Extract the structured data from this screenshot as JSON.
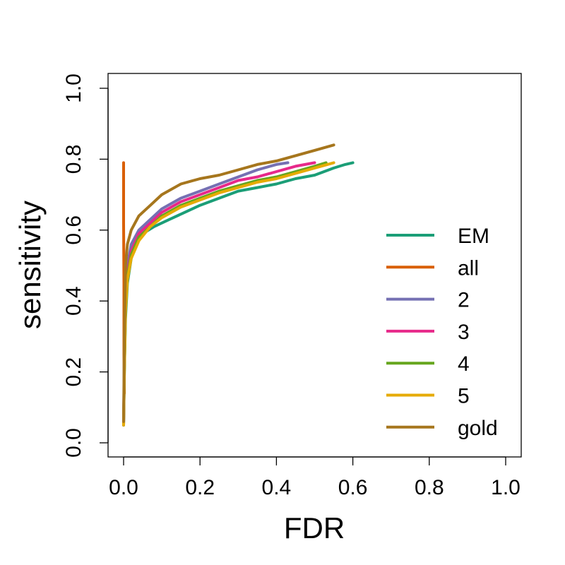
{
  "chart_data": {
    "type": "line",
    "title": "",
    "xlabel": "FDR",
    "ylabel": "sensitivity",
    "xlim": [
      0,
      1
    ],
    "ylim": [
      0,
      1
    ],
    "xticks": [
      "0.0",
      "0.2",
      "0.4",
      "0.6",
      "0.8",
      "1.0"
    ],
    "yticks": [
      "0.0",
      "0.2",
      "0.4",
      "0.6",
      "0.8",
      "1.0"
    ],
    "grid": false,
    "legend_position": "right",
    "series": [
      {
        "name": "EM",
        "color": "#1b9e77",
        "points": [
          [
            0.0,
            0.05
          ],
          [
            0.002,
            0.2
          ],
          [
            0.005,
            0.35
          ],
          [
            0.01,
            0.45
          ],
          [
            0.02,
            0.52
          ],
          [
            0.03,
            0.56
          ],
          [
            0.05,
            0.59
          ],
          [
            0.08,
            0.61
          ],
          [
            0.12,
            0.63
          ],
          [
            0.16,
            0.65
          ],
          [
            0.2,
            0.67
          ],
          [
            0.25,
            0.69
          ],
          [
            0.3,
            0.71
          ],
          [
            0.35,
            0.72
          ],
          [
            0.4,
            0.73
          ],
          [
            0.45,
            0.745
          ],
          [
            0.5,
            0.755
          ],
          [
            0.55,
            0.775
          ],
          [
            0.58,
            0.785
          ],
          [
            0.6,
            0.79
          ]
        ]
      },
      {
        "name": "all",
        "color": "#d95f02",
        "points": [
          [
            0.0,
            0.79
          ],
          [
            0.0,
            0.62
          ],
          [
            0.001,
            0.45
          ],
          [
            0.001,
            0.25
          ],
          [
            0.002,
            0.14
          ]
        ]
      },
      {
        "name": "2",
        "color": "#7570b3",
        "points": [
          [
            0.0,
            0.05
          ],
          [
            0.002,
            0.25
          ],
          [
            0.005,
            0.42
          ],
          [
            0.01,
            0.5
          ],
          [
            0.02,
            0.56
          ],
          [
            0.04,
            0.6
          ],
          [
            0.07,
            0.63
          ],
          [
            0.1,
            0.66
          ],
          [
            0.15,
            0.69
          ],
          [
            0.2,
            0.71
          ],
          [
            0.25,
            0.73
          ],
          [
            0.3,
            0.75
          ],
          [
            0.35,
            0.77
          ],
          [
            0.4,
            0.785
          ],
          [
            0.43,
            0.79
          ]
        ]
      },
      {
        "name": "3",
        "color": "#e7298a",
        "points": [
          [
            0.0,
            0.05
          ],
          [
            0.002,
            0.22
          ],
          [
            0.005,
            0.4
          ],
          [
            0.01,
            0.48
          ],
          [
            0.02,
            0.54
          ],
          [
            0.04,
            0.59
          ],
          [
            0.07,
            0.62
          ],
          [
            0.1,
            0.65
          ],
          [
            0.15,
            0.68
          ],
          [
            0.2,
            0.7
          ],
          [
            0.25,
            0.72
          ],
          [
            0.3,
            0.74
          ],
          [
            0.35,
            0.75
          ],
          [
            0.4,
            0.765
          ],
          [
            0.45,
            0.78
          ],
          [
            0.5,
            0.79
          ]
        ]
      },
      {
        "name": "4",
        "color": "#66a61e",
        "points": [
          [
            0.0,
            0.05
          ],
          [
            0.002,
            0.2
          ],
          [
            0.005,
            0.38
          ],
          [
            0.01,
            0.47
          ],
          [
            0.02,
            0.53
          ],
          [
            0.04,
            0.58
          ],
          [
            0.07,
            0.61
          ],
          [
            0.1,
            0.64
          ],
          [
            0.15,
            0.67
          ],
          [
            0.2,
            0.69
          ],
          [
            0.25,
            0.71
          ],
          [
            0.3,
            0.725
          ],
          [
            0.35,
            0.74
          ],
          [
            0.4,
            0.75
          ],
          [
            0.45,
            0.765
          ],
          [
            0.5,
            0.78
          ],
          [
            0.53,
            0.79
          ]
        ]
      },
      {
        "name": "5",
        "color": "#e6ab02",
        "points": [
          [
            0.0,
            0.05
          ],
          [
            0.002,
            0.2
          ],
          [
            0.005,
            0.37
          ],
          [
            0.01,
            0.46
          ],
          [
            0.02,
            0.52
          ],
          [
            0.04,
            0.57
          ],
          [
            0.07,
            0.61
          ],
          [
            0.1,
            0.635
          ],
          [
            0.15,
            0.665
          ],
          [
            0.2,
            0.685
          ],
          [
            0.25,
            0.705
          ],
          [
            0.3,
            0.72
          ],
          [
            0.35,
            0.735
          ],
          [
            0.4,
            0.745
          ],
          [
            0.45,
            0.76
          ],
          [
            0.5,
            0.775
          ],
          [
            0.55,
            0.79
          ]
        ]
      },
      {
        "name": "gold",
        "color": "#a6761d",
        "points": [
          [
            0.0,
            0.06
          ],
          [
            0.002,
            0.3
          ],
          [
            0.005,
            0.5
          ],
          [
            0.01,
            0.56
          ],
          [
            0.02,
            0.6
          ],
          [
            0.04,
            0.64
          ],
          [
            0.07,
            0.67
          ],
          [
            0.1,
            0.7
          ],
          [
            0.15,
            0.73
          ],
          [
            0.2,
            0.745
          ],
          [
            0.25,
            0.755
          ],
          [
            0.3,
            0.77
          ],
          [
            0.35,
            0.785
          ],
          [
            0.4,
            0.795
          ],
          [
            0.45,
            0.81
          ],
          [
            0.5,
            0.825
          ],
          [
            0.55,
            0.84
          ]
        ]
      }
    ]
  }
}
